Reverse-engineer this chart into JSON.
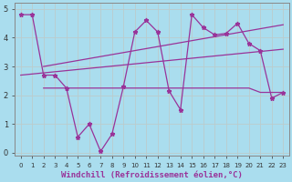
{
  "background_color": "#aaddee",
  "line_color": "#993399",
  "grid_color": "#bbdddd",
  "xlabel": "Windchill (Refroidissement éolien,°C)",
  "xlabel_fontsize": 6.5,
  "ylim": [
    -0.1,
    5.2
  ],
  "xlim": [
    -0.5,
    23.5
  ],
  "yticks": [
    0,
    1,
    2,
    3,
    4,
    5
  ],
  "xticks": [
    0,
    1,
    2,
    3,
    4,
    5,
    6,
    7,
    8,
    9,
    10,
    11,
    12,
    13,
    14,
    15,
    16,
    17,
    18,
    19,
    20,
    21,
    22,
    23
  ],
  "lines": [
    {
      "x": [
        0,
        1,
        2,
        3,
        4,
        5,
        6,
        7,
        8,
        9,
        10,
        11,
        12,
        13,
        14,
        15,
        16,
        17,
        18,
        19,
        20,
        21,
        22,
        23
      ],
      "y": [
        4.8,
        4.8,
        2.7,
        2.7,
        2.25,
        0.55,
        1.0,
        0.05,
        0.65,
        2.3,
        4.2,
        4.6,
        4.2,
        2.15,
        1.5,
        4.8,
        4.35,
        4.1,
        4.15,
        4.5,
        3.8,
        3.55,
        1.9,
        2.1
      ],
      "marker": true
    },
    {
      "x": [
        2,
        3,
        4,
        5,
        6,
        7,
        8,
        9,
        10,
        11,
        12,
        13,
        14,
        15,
        16,
        17,
        18,
        19,
        20,
        21,
        22,
        23
      ],
      "y": [
        2.25,
        2.25,
        2.25,
        2.25,
        2.25,
        2.25,
        2.25,
        2.25,
        2.25,
        2.25,
        2.25,
        2.25,
        2.25,
        2.25,
        2.25,
        2.25,
        2.25,
        2.25,
        2.25,
        2.1,
        2.1,
        2.1
      ],
      "marker": false
    },
    {
      "x": [
        0,
        23
      ],
      "y": [
        2.7,
        3.6
      ],
      "marker": false
    },
    {
      "x": [
        2,
        23
      ],
      "y": [
        3.0,
        4.45
      ],
      "marker": false
    }
  ]
}
